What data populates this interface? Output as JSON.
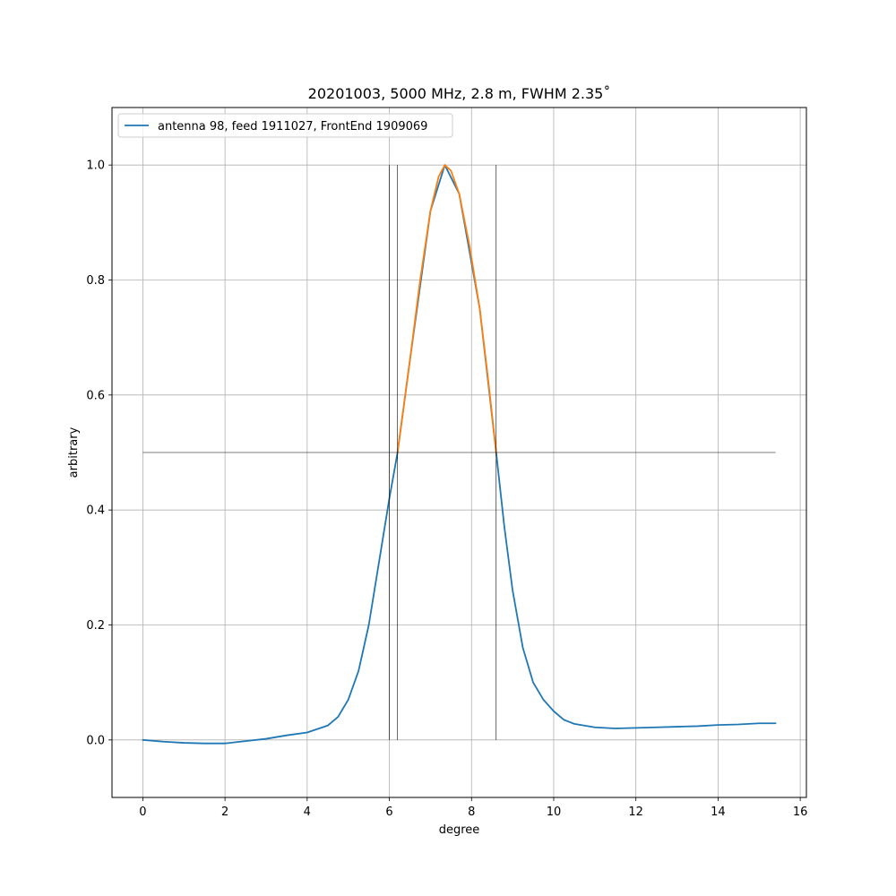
{
  "chart_data": {
    "type": "line",
    "title": "20201003, 5000 MHz, 2.8 m, FWHM 2.35$^\\circ$",
    "title_display": "20201003, 5000 MHz, 2.8 m, FWHM 2.35˚",
    "xlabel": "degree",
    "ylabel": "arbitrary",
    "xlim": [
      -0.75,
      16.15
    ],
    "ylim": [
      -0.1,
      1.1
    ],
    "xticks": [
      0,
      2,
      4,
      6,
      8,
      10,
      12,
      14,
      16
    ],
    "yticks": [
      0.0,
      0.2,
      0.4,
      0.6,
      0.8,
      1.0
    ],
    "xtick_labels": [
      "0",
      "2",
      "4",
      "6",
      "8",
      "10",
      "12",
      "14",
      "16"
    ],
    "ytick_labels": [
      "0.0",
      "0.2",
      "0.4",
      "0.6",
      "0.8",
      "1.0"
    ],
    "grid": true,
    "legend_position": "top-left",
    "series": [
      {
        "name": "antenna 98, feed 1911027, FrontEnd 1909069",
        "color": "#1f77b4",
        "x": [
          0.0,
          0.5,
          1.0,
          1.5,
          2.0,
          2.5,
          3.0,
          3.5,
          4.0,
          4.5,
          4.75,
          5.0,
          5.25,
          5.5,
          5.75,
          6.0,
          6.2,
          6.5,
          7.0,
          7.35,
          7.7,
          8.2,
          8.6,
          8.8,
          9.0,
          9.25,
          9.5,
          9.75,
          10.0,
          10.25,
          10.5,
          11.0,
          11.5,
          12.0,
          12.5,
          13.0,
          13.5,
          14.0,
          14.5,
          15.0,
          15.4
        ],
        "y": [
          0.0,
          -0.003,
          -0.005,
          -0.006,
          -0.006,
          -0.002,
          0.002,
          0.008,
          0.013,
          0.025,
          0.04,
          0.07,
          0.12,
          0.2,
          0.31,
          0.42,
          0.5,
          0.66,
          0.92,
          1.0,
          0.95,
          0.75,
          0.5,
          0.37,
          0.26,
          0.16,
          0.1,
          0.07,
          0.05,
          0.035,
          0.028,
          0.022,
          0.02,
          0.021,
          0.022,
          0.023,
          0.024,
          0.026,
          0.027,
          0.029,
          0.029
        ]
      },
      {
        "name": "",
        "color": "#ff7f0e",
        "x": [
          6.2,
          6.5,
          6.75,
          7.0,
          7.2,
          7.35,
          7.5,
          7.7,
          7.95,
          8.2,
          8.4,
          8.6
        ],
        "y": [
          0.5,
          0.66,
          0.8,
          0.92,
          0.98,
          1.0,
          0.99,
          0.95,
          0.86,
          0.75,
          0.63,
          0.5
        ]
      }
    ],
    "reference_lines": {
      "half_max_y": 0.5,
      "hline_x_range": [
        0.0,
        15.4
      ],
      "left_edge_x": 6.2,
      "right_edge_x": 8.6,
      "extra_vline_x": 6.0,
      "vline_y_range": [
        0.0,
        1.0
      ]
    }
  }
}
